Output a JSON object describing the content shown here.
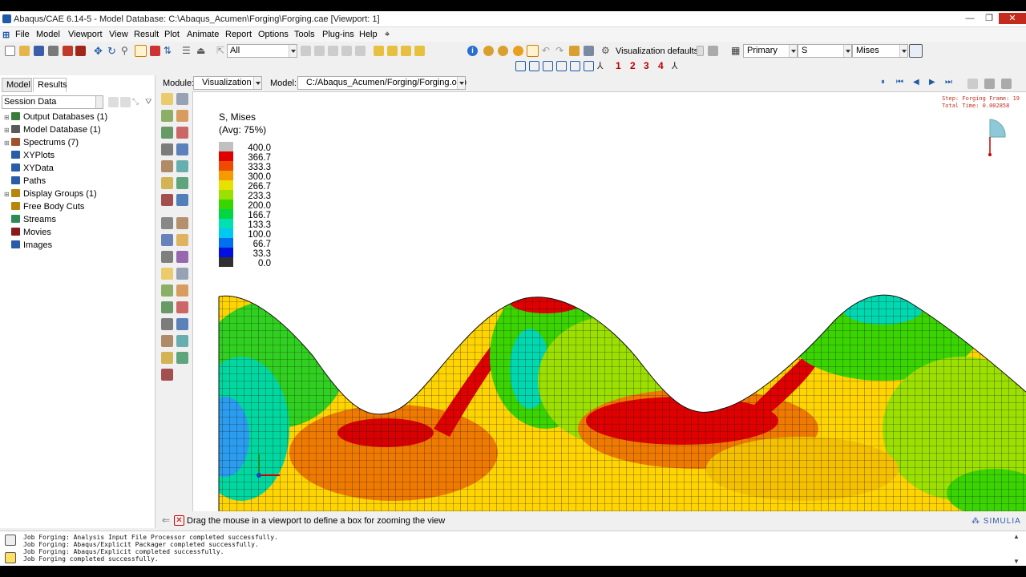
{
  "window": {
    "title": "Abaqus/CAE 6.14-5 - Model Database: C:\\Abaqus_Acumen\\Forging\\Forging.cae [Viewport: 1]",
    "controls": [
      "—",
      "❐",
      "✕"
    ]
  },
  "menu": [
    "File",
    "Model",
    "Viewport",
    "View",
    "Result",
    "Plot",
    "Animate",
    "Report",
    "Options",
    "Tools",
    "Plug-ins",
    "Help",
    "⌖"
  ],
  "toolbar": {
    "selection_filter": "All",
    "visualization_defaults": "Visualization defaults",
    "primary_label": "Primary",
    "variable": "S",
    "invariant": "Mises",
    "viewport_numbers": [
      "1",
      "2",
      "3",
      "4"
    ]
  },
  "left_panel": {
    "tabs": [
      "Model",
      "Results"
    ],
    "active_tab": "Results",
    "session_selector": "Session Data",
    "tree": [
      {
        "label": "Output Databases (1)",
        "icon_color": "#3a7d3a",
        "expandable": true
      },
      {
        "label": "Model Database (1)",
        "icon_color": "#5a5a5a",
        "expandable": true
      },
      {
        "label": "Spectrums (7)",
        "icon_color": "#a0522d",
        "expandable": true
      },
      {
        "label": "XYPlots",
        "icon_color": "#2a5ca8",
        "expandable": false
      },
      {
        "label": "XYData",
        "icon_color": "#2a5ca8",
        "expandable": false
      },
      {
        "label": "Paths",
        "icon_color": "#2a5ca8",
        "expandable": false
      },
      {
        "label": "Display Groups (1)",
        "icon_color": "#b8860b",
        "expandable": true
      },
      {
        "label": "Free Body Cuts",
        "icon_color": "#b8860b",
        "expandable": false
      },
      {
        "label": "Streams",
        "icon_color": "#2e8b57",
        "expandable": false
      },
      {
        "label": "Movies",
        "icon_color": "#8b1a1a",
        "expandable": false
      },
      {
        "label": "Images",
        "icon_color": "#2a5ca8",
        "expandable": false
      }
    ]
  },
  "context_bar": {
    "module_label": "Module:",
    "module_value": "Visualization",
    "model_label": "Model:",
    "model_value": "C:/Abaqus_Acumen/Forging/Forging.odb",
    "animation_controls": [
      "⏸",
      "⏮",
      "◀",
      "▶",
      "⏭"
    ]
  },
  "viewport": {
    "legend_title_1": "S, Mises",
    "legend_title_2": "(Avg: 75%)",
    "legend": [
      {
        "value": "400.0",
        "color": "#c0c0c0"
      },
      {
        "value": "366.7",
        "color": "#e00000"
      },
      {
        "value": "333.3",
        "color": "#f04a00"
      },
      {
        "value": "300.0",
        "color": "#f59a00"
      },
      {
        "value": "266.7",
        "color": "#e8e000"
      },
      {
        "value": "233.3",
        "color": "#9be000"
      },
      {
        "value": "200.0",
        "color": "#3ad400"
      },
      {
        "value": "166.7",
        "color": "#00d640"
      },
      {
        "value": "133.3",
        "color": "#00e0b0"
      },
      {
        "value": "100.0",
        "color": "#00c8f0"
      },
      {
        "value": "66.7",
        "color": "#0070f0"
      },
      {
        "value": "33.3",
        "color": "#0010e0"
      },
      {
        "value": "0.0",
        "color": "#303030"
      }
    ],
    "step_info_1": "Step: Forging  Frame: 19",
    "step_info_2": "Total Time: 0.002858"
  },
  "prompt": {
    "text": "Drag the mouse in a viewport to define a box for zooming the view",
    "brand": "SIMULIA"
  },
  "messages": [
    "Job Forging: Analysis Input File Processor completed successfully.",
    "Job Forging: Abaqus/Explicit Packager completed successfully.",
    "Job Forging: Abaqus/Explicit completed successfully.",
    "Job Forging completed successfully."
  ]
}
